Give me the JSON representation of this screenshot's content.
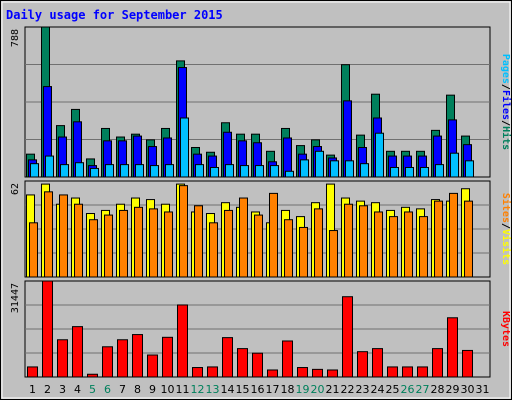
{
  "title": "Daily usage for September 2015",
  "colors": {
    "background": "#c0c0c0",
    "plot": "#c0c0c0",
    "hits": "#00805c",
    "files": "#0000ff",
    "pages": "#00c0ff",
    "visits": "#ffff00",
    "sites": "#ff8000",
    "kbytes": "#ff0000",
    "title": "#0000ff",
    "weekend": "#00805c",
    "weekday": "#000000"
  },
  "chart_data": [
    {
      "type": "bar",
      "title": "Daily usage for September 2015",
      "panel": "hits-files-pages",
      "ylabel": "788",
      "ymax": 788,
      "categories": [
        "1",
        "2",
        "3",
        "4",
        "5",
        "6",
        "7",
        "8",
        "9",
        "10",
        "11",
        "12",
        "13",
        "14",
        "15",
        "16",
        "17",
        "18",
        "19",
        "20",
        "21",
        "22",
        "23",
        "24",
        "25",
        "26",
        "27",
        "28",
        "29",
        "30",
        "31"
      ],
      "series": [
        {
          "name": "Hits",
          "values": [
            120,
            788,
            270,
            355,
            95,
            255,
            210,
            225,
            195,
            255,
            610,
            155,
            130,
            285,
            225,
            225,
            135,
            255,
            165,
            195,
            115,
            590,
            220,
            435,
            135,
            135,
            135,
            245,
            430,
            215,
            0
          ]
        },
        {
          "name": "Files",
          "values": [
            90,
            475,
            210,
            290,
            60,
            190,
            190,
            215,
            160,
            205,
            575,
            120,
            110,
            235,
            190,
            180,
            80,
            205,
            120,
            160,
            100,
            400,
            155,
            310,
            110,
            110,
            110,
            215,
            300,
            170,
            0
          ]
        },
        {
          "name": "Pages",
          "values": [
            70,
            110,
            65,
            75,
            45,
            65,
            65,
            65,
            60,
            65,
            310,
            65,
            50,
            65,
            60,
            60,
            60,
            30,
            90,
            135,
            85,
            85,
            70,
            230,
            50,
            50,
            50,
            65,
            125,
            85,
            0
          ]
        }
      ]
    },
    {
      "type": "bar",
      "panel": "visits-sites",
      "ylabel": "62",
      "ymax": 62,
      "categories": [
        "1",
        "2",
        "3",
        "4",
        "5",
        "6",
        "7",
        "8",
        "9",
        "10",
        "11",
        "12",
        "13",
        "14",
        "15",
        "16",
        "17",
        "18",
        "19",
        "20",
        "21",
        "22",
        "23",
        "24",
        "25",
        "26",
        "27",
        "28",
        "29",
        "30",
        "31"
      ],
      "series": [
        {
          "name": "Visits",
          "values": [
            53,
            60,
            47,
            51,
            41,
            43,
            47,
            51,
            50,
            47,
            60,
            42,
            41,
            48,
            45,
            42,
            35,
            43,
            39,
            48,
            60,
            51,
            49,
            48,
            43,
            45,
            44,
            50,
            49,
            57,
            0
          ]
        },
        {
          "name": "Sites",
          "values": [
            35,
            55,
            53,
            47,
            37,
            40,
            43,
            45,
            44,
            42,
            59,
            46,
            35,
            43,
            51,
            40,
            54,
            37,
            32,
            44,
            30,
            47,
            46,
            42,
            39,
            42,
            39,
            49,
            54,
            49,
            0
          ]
        }
      ]
    },
    {
      "type": "bar",
      "panel": "kbytes",
      "ylabel": "31447",
      "ymax": 31447,
      "categories": [
        "1",
        "2",
        "3",
        "4",
        "5",
        "6",
        "7",
        "8",
        "9",
        "10",
        "11",
        "12",
        "13",
        "14",
        "15",
        "16",
        "17",
        "18",
        "19",
        "20",
        "21",
        "22",
        "23",
        "24",
        "25",
        "26",
        "27",
        "28",
        "29",
        "30",
        "31"
      ],
      "series": [
        {
          "name": "KBytes",
          "values": [
            3300,
            31447,
            12200,
            16500,
            900,
            9900,
            12200,
            13900,
            7200,
            13000,
            23600,
            3100,
            3300,
            12900,
            9300,
            7800,
            2300,
            11800,
            3100,
            2500,
            2300,
            26300,
            8300,
            9300,
            3300,
            3300,
            3300,
            9300,
            19400,
            8700,
            0
          ]
        }
      ]
    }
  ],
  "legends": {
    "panel1": [
      {
        "text": "Pages",
        "color": "#00c0ff"
      },
      {
        "text": "/",
        "color": "#000000"
      },
      {
        "text": "Files",
        "color": "#0000ff"
      },
      {
        "text": "/",
        "color": "#000000"
      },
      {
        "text": "Hits",
        "color": "#00805c"
      }
    ],
    "panel2": [
      {
        "text": "Sites",
        "color": "#ff8000"
      },
      {
        "text": "/",
        "color": "#000000"
      },
      {
        "text": "Visits",
        "color": "#ffff00"
      }
    ],
    "panel3": [
      {
        "text": "KBytes",
        "color": "#ff0000"
      }
    ]
  },
  "weekend_days": [
    "5",
    "6",
    "12",
    "13",
    "19",
    "20",
    "26",
    "27"
  ]
}
